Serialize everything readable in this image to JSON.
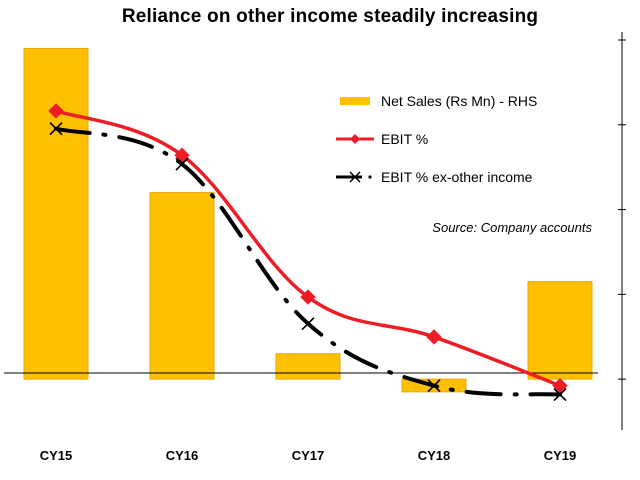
{
  "chart_data": {
    "type": "bar+line",
    "title": "Reliance on other income steadily increasing",
    "categories": [
      "CY15",
      "CY16",
      "CY17",
      "CY18",
      "CY19"
    ],
    "series": [
      {
        "name": "Net Sales (Rs Mn) - RHS",
        "kind": "bar",
        "axis": "right",
        "values": [
          3.9,
          2.2,
          0.3,
          -0.15,
          1.15
        ],
        "color": "#FFC000"
      },
      {
        "name": "EBIT %",
        "kind": "line",
        "axis": "left",
        "values": [
          3.0,
          2.5,
          0.9,
          0.45,
          -0.1
        ],
        "color": "#EE1C25",
        "marker": "diamond"
      },
      {
        "name": "EBIT % ex-other income",
        "kind": "line",
        "axis": "left",
        "values": [
          2.8,
          2.4,
          0.6,
          -0.1,
          -0.2
        ],
        "color": "#000000",
        "marker": "x",
        "dash": "long-dash-dot"
      }
    ],
    "ylim_left": [
      -0.6,
      3.8
    ],
    "ylim_right": [
      -0.6,
      4.0
    ],
    "right_axis_ticks": [
      0,
      1,
      2,
      3,
      4
    ],
    "legend_position": "top-right",
    "grid": false,
    "annotation": "Source: Company accounts"
  }
}
